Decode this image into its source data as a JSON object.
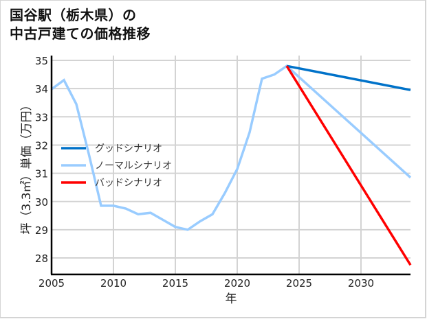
{
  "title": {
    "line1": "国谷駅（栃木県）の",
    "line2": "中古戸建ての価格推移"
  },
  "chart_data": {
    "type": "line",
    "title": "国谷駅（栃木県）の中古戸建ての価格推移",
    "xlabel": "年",
    "ylabel": "坪（3.3㎡）単価（万円）",
    "xlim": [
      2005,
      2034
    ],
    "ylim": [
      27.4,
      35.2
    ],
    "x_ticks": [
      "2005",
      "2010",
      "2015",
      "2020",
      "2025",
      "2030"
    ],
    "y_ticks": [
      "28",
      "29",
      "30",
      "31",
      "32",
      "33",
      "34",
      "35"
    ],
    "grid": true,
    "legend_position": "center-left",
    "series": [
      {
        "name": "グッドシナリオ",
        "color": "#0072c9",
        "x": [
          2024,
          2034
        ],
        "values": [
          34.8,
          33.95
        ]
      },
      {
        "name": "ノーマルシナリオ",
        "color": "#99ccff",
        "x": [
          2005,
          2006,
          2007,
          2008,
          2009,
          2010,
          2011,
          2012,
          2013,
          2014,
          2015,
          2016,
          2017,
          2018,
          2019,
          2020,
          2021,
          2022,
          2023,
          2024,
          2034
        ],
        "values": [
          33.98,
          34.3,
          33.45,
          31.7,
          29.85,
          29.85,
          29.75,
          29.55,
          29.6,
          29.35,
          29.1,
          29.0,
          29.3,
          29.55,
          30.3,
          31.15,
          32.45,
          34.35,
          34.5,
          34.8,
          30.85
        ]
      },
      {
        "name": "バッドシナリオ",
        "color": "#ff0000",
        "x": [
          2024,
          2034
        ],
        "values": [
          34.8,
          27.75
        ]
      }
    ]
  }
}
